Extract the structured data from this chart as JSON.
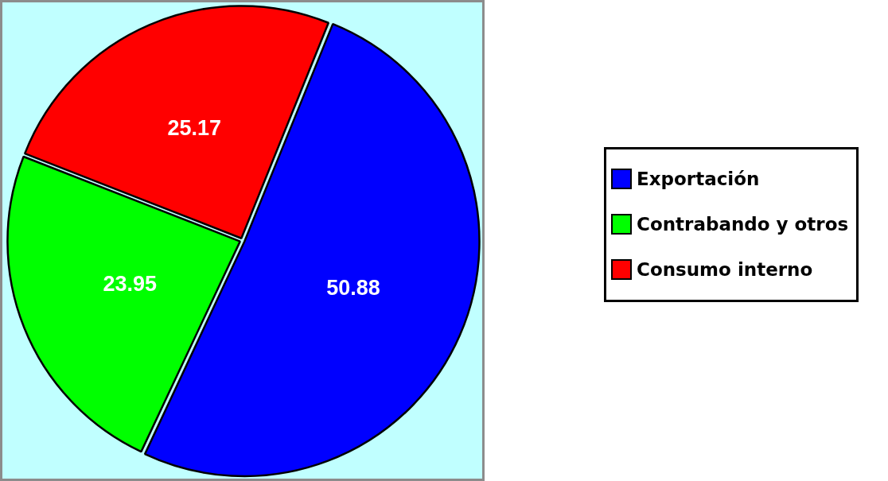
{
  "chart_data": {
    "type": "pie",
    "categories": [
      "Exportación",
      "Contrabando y otros",
      "Consumo interno"
    ],
    "values": [
      50.88,
      23.95,
      25.17
    ],
    "colors": [
      "#0000ff",
      "#00ff00",
      "#ff0000"
    ],
    "data_labels": true,
    "legend": "right"
  }
}
